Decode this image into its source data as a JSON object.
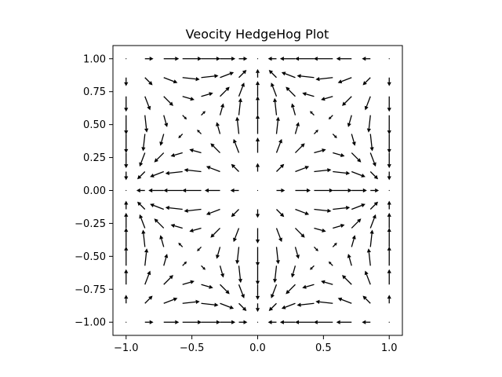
{
  "chart_data": {
    "type": "quiver",
    "title": "Veocity HedgeHog Plot",
    "xlabel": "",
    "ylabel": "",
    "xlim": [
      -1.1,
      1.1
    ],
    "ylim": [
      -1.1,
      1.1
    ],
    "xticks": [
      -1.0,
      -0.5,
      0.0,
      0.5,
      1.0
    ],
    "xtick_labels": [
      "−1.0",
      "−0.5",
      "0.0",
      "0.5",
      "1.0"
    ],
    "yticks": [
      -1.0,
      -0.75,
      -0.5,
      -0.25,
      0.0,
      0.25,
      0.5,
      0.75,
      1.0
    ],
    "ytick_labels": [
      "−1.00",
      "−0.75",
      "−0.50",
      "−0.25",
      "0.00",
      "0.25",
      "0.50",
      "0.75",
      "1.00"
    ],
    "grid": false,
    "aspect": "equal",
    "x": [
      -1.0,
      -0.857,
      -0.714,
      -0.571,
      -0.429,
      -0.286,
      -0.143,
      0.0,
      0.143,
      0.286,
      0.429,
      0.571,
      0.714,
      0.857,
      1.0
    ],
    "y": [
      -1.0,
      -0.857,
      -0.714,
      -0.571,
      -0.429,
      -0.286,
      -0.143,
      0.0,
      0.143,
      0.286,
      0.429,
      0.571,
      0.714,
      0.857,
      1.0
    ],
    "u_expression": "sin(pi*x)*cos(pi*y)",
    "v_expression": "cos(pi*x)*sin(pi*y)",
    "arrow_color": "#000000"
  }
}
